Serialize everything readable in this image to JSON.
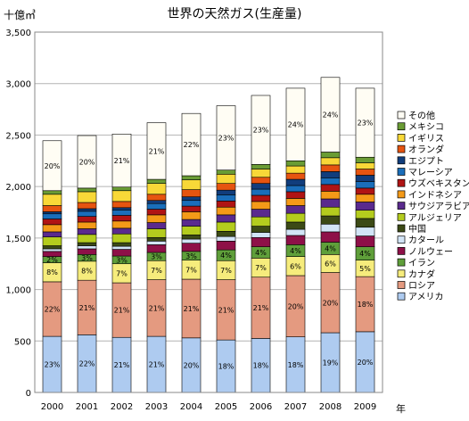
{
  "chart_data": {
    "type": "bar",
    "stacked": true,
    "title": "世界の天然ガス(生産量)",
    "ylabel": "十億㎥",
    "xlabel": "年",
    "ylim": [
      0,
      3500
    ],
    "yticks": [
      0,
      500,
      1000,
      1500,
      2000,
      2500,
      3000,
      3500
    ],
    "ytick_labels": [
      "0",
      "500",
      "1,000",
      "1,500",
      "2,000",
      "2,500",
      "3,000",
      "3,500"
    ],
    "grid": true,
    "legend_position": "right",
    "categories": [
      "2000",
      "2001",
      "2002",
      "2003",
      "2004",
      "2005",
      "2006",
      "2007",
      "2008",
      "2009"
    ],
    "series": [
      {
        "name": "アメリカ",
        "color": "#aecbf0",
        "values": [
          545,
          560,
          535,
          545,
          530,
          510,
          525,
          540,
          580,
          590
        ],
        "labels": [
          "23%",
          "22%",
          "21%",
          "21%",
          "20%",
          "18%",
          "18%",
          "18%",
          "19%",
          "20%"
        ]
      },
      {
        "name": "ロシア",
        "color": "#e49a80",
        "values": [
          530,
          530,
          530,
          550,
          570,
          585,
          595,
          595,
          585,
          535
        ],
        "labels": [
          "22%",
          "21%",
          "21%",
          "21%",
          "21%",
          "21%",
          "21%",
          "20%",
          "20%",
          "18%"
        ]
      },
      {
        "name": "カナダ",
        "color": "#f6ec7c",
        "values": [
          185,
          185,
          185,
          185,
          185,
          185,
          185,
          185,
          175,
          160
        ],
        "labels": [
          "8%",
          "8%",
          "7%",
          "7%",
          "7%",
          "7%",
          "7%",
          "6%",
          "6%",
          "5%"
        ]
      },
      {
        "name": "イラン",
        "color": "#5f9f3a",
        "values": [
          60,
          65,
          75,
          80,
          85,
          105,
          110,
          115,
          120,
          130
        ],
        "labels": [
          "2%",
          "3%",
          "3%",
          "3%",
          "3%",
          "4%",
          "4%",
          "4%",
          "4%",
          "4%"
        ]
      },
      {
        "name": "ノルウェー",
        "color": "#8e1048",
        "values": [
          50,
          55,
          65,
          75,
          80,
          85,
          90,
          90,
          100,
          105
        ]
      },
      {
        "name": "カタール",
        "color": "#d2e4f6",
        "values": [
          25,
          30,
          30,
          35,
          40,
          45,
          50,
          60,
          75,
          85
        ]
      },
      {
        "name": "中国",
        "color": "#3c4a16",
        "values": [
          30,
          30,
          35,
          35,
          40,
          50,
          60,
          70,
          80,
          85
        ]
      },
      {
        "name": "アルジェリア",
        "color": "#b4cc1e",
        "values": [
          85,
          80,
          85,
          85,
          85,
          90,
          90,
          85,
          85,
          80
        ]
      },
      {
        "name": "サウジアラビア",
        "color": "#5a2a8e",
        "values": [
          50,
          55,
          55,
          60,
          65,
          70,
          75,
          75,
          80,
          80
        ]
      },
      {
        "name": "インドネシア",
        "color": "#f49a18",
        "values": [
          70,
          65,
          70,
          75,
          75,
          75,
          75,
          70,
          75,
          75
        ]
      },
      {
        "name": "ウズベキスタン",
        "color": "#b01414",
        "values": [
          55,
          55,
          55,
          55,
          55,
          60,
          60,
          65,
          65,
          60
        ]
      },
      {
        "name": "マレーシア",
        "color": "#1a6eba",
        "values": [
          50,
          50,
          50,
          55,
          55,
          60,
          60,
          60,
          65,
          65
        ]
      },
      {
        "name": "エジプト",
        "color": "#113d7c",
        "values": [
          20,
          25,
          25,
          30,
          35,
          45,
          55,
          60,
          60,
          60
        ]
      },
      {
        "name": "オランダ",
        "color": "#e65410",
        "values": [
          60,
          60,
          60,
          60,
          70,
          65,
          60,
          60,
          65,
          60
        ]
      },
      {
        "name": "イギリス",
        "color": "#f8d838",
        "values": [
          110,
          105,
          105,
          105,
          95,
          90,
          80,
          70,
          70,
          60
        ]
      },
      {
        "name": "メキシコ",
        "color": "#6a9c34",
        "values": [
          35,
          35,
          35,
          40,
          40,
          40,
          45,
          50,
          55,
          55
        ]
      },
      {
        "name": "その他",
        "color": "#fffdf4",
        "values": [
          485,
          510,
          515,
          550,
          605,
          625,
          670,
          705,
          725,
          670
        ],
        "labels": [
          "20%",
          "20%",
          "21%",
          "21%",
          "22%",
          "23%",
          "23%",
          "24%",
          "24%",
          "23%"
        ]
      }
    ]
  }
}
